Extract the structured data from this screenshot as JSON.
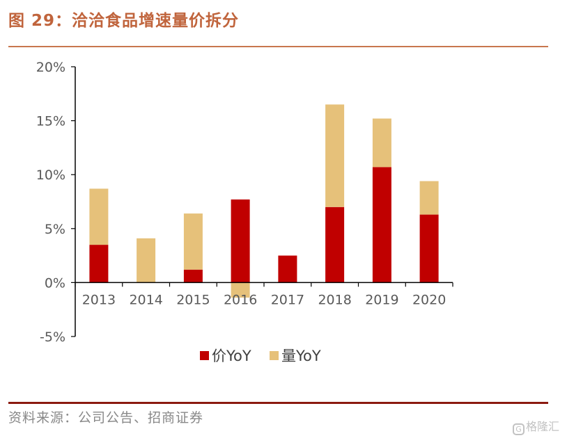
{
  "header": {
    "title": "图 29：洽洽食品增速量价拆分"
  },
  "footer": {
    "source": "资料来源：公司公告、招商证券",
    "watermark": "格隆汇"
  },
  "chart_data": {
    "type": "bar",
    "stacked": true,
    "categories": [
      "2013",
      "2014",
      "2015",
      "2016",
      "2017",
      "2018",
      "2019",
      "2020"
    ],
    "series": [
      {
        "name": "价YoY",
        "color": "#c00000",
        "values": [
          3.5,
          0.0,
          1.2,
          7.7,
          2.5,
          7.0,
          10.7,
          6.3
        ]
      },
      {
        "name": "量YoY",
        "color": "#e6c17a",
        "values": [
          5.2,
          4.1,
          5.2,
          -1.4,
          0.0,
          9.5,
          4.5,
          3.1
        ]
      }
    ],
    "ylim": [
      -5,
      20
    ],
    "yticks": [
      -5,
      0,
      5,
      10,
      15,
      20
    ],
    "ytick_labels": [
      "-5%",
      "0%",
      "5%",
      "10%",
      "15%",
      "20%"
    ],
    "legend": "bottom",
    "grid": false
  }
}
